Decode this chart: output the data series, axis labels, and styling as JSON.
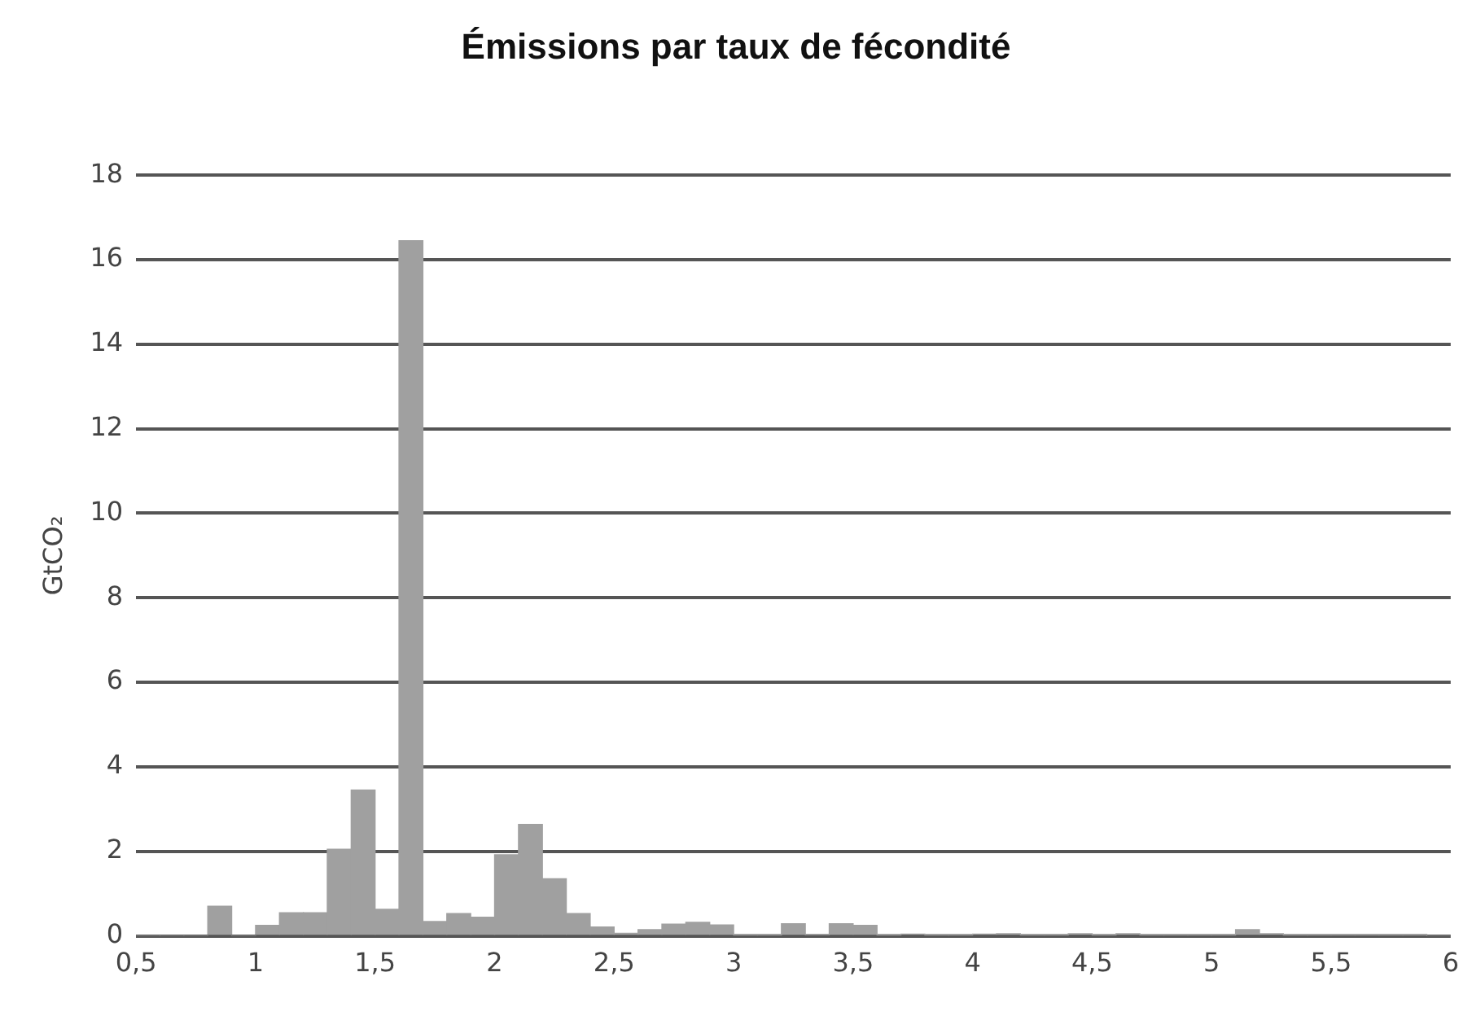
{
  "chart_data": {
    "type": "histogram",
    "title": "Émissions par taux de fécondité",
    "ylabel": "GtCO₂",
    "bins": [
      0.5,
      0.6,
      0.7,
      0.8,
      0.9,
      1.0,
      1.1,
      1.2,
      1.3,
      1.4,
      1.5,
      1.6,
      1.7,
      1.8,
      1.9,
      2.0,
      2.1,
      2.2,
      2.3,
      2.4,
      2.5,
      2.6,
      2.7,
      2.8,
      2.9,
      3.0,
      3.1,
      3.2,
      3.3,
      3.4,
      3.5,
      3.6,
      3.7,
      3.8,
      3.9,
      4.0,
      4.1,
      4.2,
      4.3,
      4.4,
      4.5,
      4.6,
      4.7,
      4.8,
      4.9,
      5.0,
      5.1,
      5.2,
      5.3,
      5.4,
      5.5,
      5.6,
      5.7,
      5.8,
      5.9,
      6.0
    ],
    "values": [
      0,
      0,
      0,
      0.7,
      0,
      0.25,
      0.55,
      0.55,
      2.05,
      3.45,
      0.63,
      16.45,
      0.34,
      0.53,
      0.44,
      1.92,
      2.64,
      1.35,
      0.53,
      0.21,
      0.06,
      0.15,
      0.28,
      0.32,
      0.26,
      0.02,
      0.02,
      0.29,
      0.03,
      0.29,
      0.25,
      0.02,
      0.04,
      0.02,
      0.02,
      0.04,
      0.05,
      0.02,
      0.02,
      0.05,
      0.02,
      0.05,
      0.02,
      0.02,
      0.02,
      0.02,
      0.15,
      0.05,
      0.02,
      0.02,
      0.02,
      0.02,
      0.02,
      0.02,
      0
    ],
    "color": "#a0a0a0",
    "xlim": [
      0.5,
      6
    ],
    "xticks": [
      {
        "value": 0.5,
        "label": "0,5"
      },
      1,
      {
        "value": 1.5,
        "label": "1,5"
      },
      2,
      {
        "value": 2.5,
        "label": "2,5"
      },
      3,
      {
        "value": 3.5,
        "label": "3,5"
      },
      4,
      {
        "value": 4.5,
        "label": "4,5"
      },
      5,
      {
        "value": 5.5,
        "label": "5,5"
      },
      6
    ],
    "ylim": [
      0,
      18
    ],
    "yticks": [
      0,
      2,
      4,
      6,
      8,
      10,
      12,
      14,
      16,
      18
    ],
    "grid": "y",
    "legend": false
  }
}
